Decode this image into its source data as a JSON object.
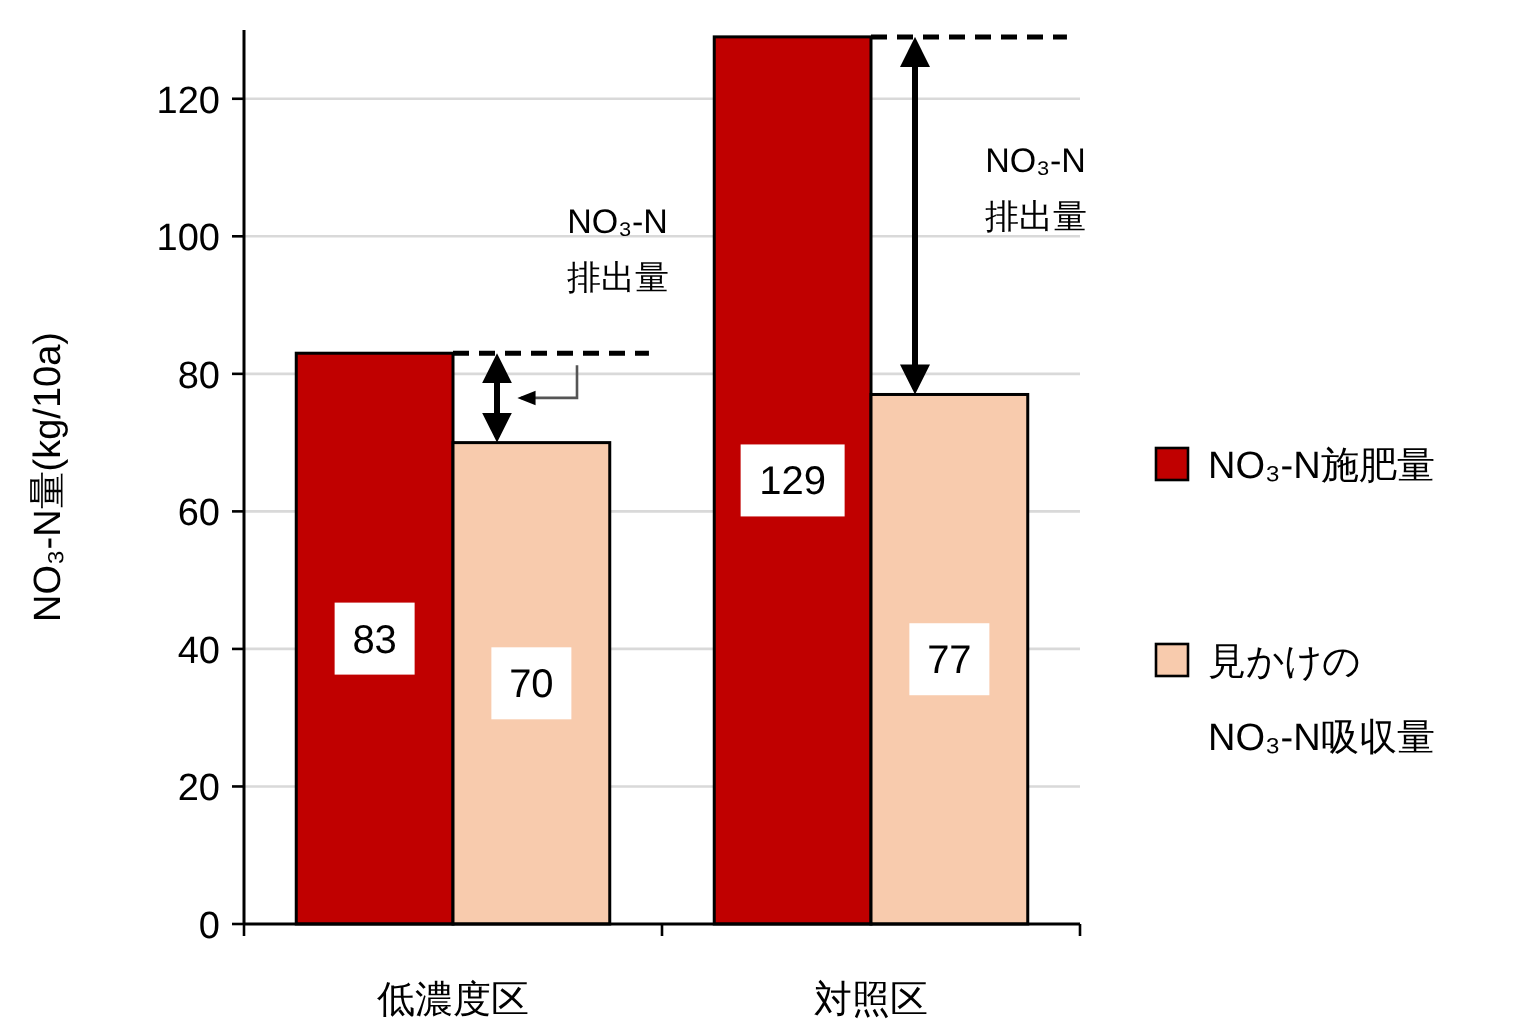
{
  "chart_data": {
    "type": "bar",
    "ylabel": "NO₃-N量(kg/10a)",
    "categories": [
      "低濃度区",
      "対照区"
    ],
    "series": [
      {
        "name": "NO₃-N施肥量",
        "color": "#c00000",
        "values": [
          83,
          129
        ]
      },
      {
        "name": "見かけの\nNO₃-N吸収量",
        "color": "#f8cbad",
        "values": [
          70,
          77
        ]
      }
    ],
    "ylim": [
      0,
      130
    ],
    "yticks": [
      0,
      20,
      40,
      60,
      80,
      100,
      120
    ],
    "grid": "y",
    "legend": "right",
    "data_labels": true,
    "annotations": [
      "NO₃-N\n排出量",
      "NO₃-N\n排出量"
    ]
  }
}
